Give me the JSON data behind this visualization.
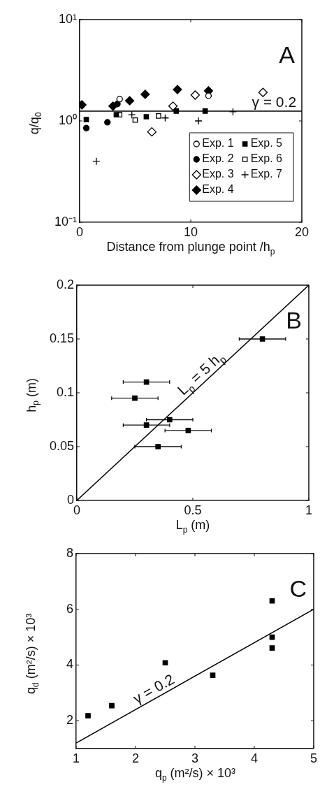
{
  "chart_data": [
    {
      "type": "scatter",
      "xlabel": "Distance from plunge point /h$_{p}$",
      "ylabel": "q/q$_{0}$",
      "log": "y",
      "xlim": [
        0,
        20
      ],
      "xticks": [
        0,
        10,
        20
      ],
      "ylim": [
        0.1,
        10
      ],
      "yticks": [
        {
          "value": 0.1,
          "label": "10⁻¹"
        },
        {
          "value": 1,
          "label": "10⁰"
        },
        {
          "value": 10,
          "label": "10¹"
        }
      ],
      "legend": "bottom right",
      "annotations": [
        "A",
        {
          "text": "γ = 0.2",
          "x": 17.5,
          "y": 1.25
        }
      ],
      "ref_lines": [
        {
          "axis": "y",
          "value": 1.25,
          "color": "#000000"
        }
      ],
      "series": [
        {
          "name": "Exp. 1",
          "color": "#ffffff",
          "marker": "circle",
          "x": [
            3.6,
            11.6
          ],
          "values": [
            1.64,
            1.77
          ]
        },
        {
          "name": "Exp. 2",
          "color": "#000000",
          "marker": "circle",
          "x": [
            0.6,
            2.5,
            3.4
          ],
          "values": [
            0.85,
            0.97,
            1.47
          ]
        },
        {
          "name": "Exp. 3",
          "color": "#ffffff",
          "marker": "diamond",
          "x": [
            6.5,
            8.4,
            10.4,
            16.5
          ],
          "values": [
            0.78,
            1.4,
            1.8,
            1.91
          ]
        },
        {
          "name": "Exp. 4",
          "color": "#000000",
          "marker": "diamond",
          "x": [
            0.2,
            3.0,
            4.5,
            5.9,
            8.8,
            11.6
          ],
          "values": [
            1.44,
            1.4,
            1.58,
            1.83,
            2.04,
            1.98
          ]
        },
        {
          "name": "Exp. 5",
          "color": "#000000",
          "marker": "square",
          "x": [
            0.6,
            3.3,
            6.0,
            8.7,
            11.3
          ],
          "values": [
            1.03,
            1.15,
            1.1,
            1.25,
            1.25
          ]
        },
        {
          "name": "Exp. 6",
          "color": "#ffffff",
          "marker": "square",
          "x": [
            3.6,
            5.0,
            7.1
          ],
          "values": [
            1.15,
            1.02,
            1.12
          ]
        },
        {
          "name": "Exp. 7",
          "color": "#000000",
          "marker": "cross",
          "x": [
            1.5,
            4.7,
            7.7,
            10.7,
            13.8
          ],
          "values": [
            0.4,
            1.15,
            1.07,
            1.0,
            1.23
          ]
        }
      ]
    },
    {
      "type": "scatter",
      "xlabel": "L$_{p}$ (m)",
      "ylabel": "h$_{p}$ (m)",
      "xlim": [
        0,
        1
      ],
      "xticks": [
        0,
        0.5,
        1
      ],
      "ylim": [
        0,
        0.2
      ],
      "yticks": [
        0,
        0.05,
        0.1,
        0.15,
        0.2
      ],
      "annotations": [
        "B",
        {
          "text": "L$_{p}$ = 5 h$_{p}$",
          "x": 0.56,
          "y": 0.112
        }
      ],
      "series": [
        {
          "color": "#000000",
          "marker": "square",
          "x": [
            0.8,
            0.3,
            0.25,
            0.4,
            0.3,
            0.48,
            0.35
          ],
          "values": [
            0.15,
            0.11,
            0.095,
            0.075,
            0.07,
            0.065,
            0.05
          ],
          "xerrors": [
            0.1,
            0.1,
            0.1,
            0.1,
            0.1,
            0.1,
            0.1
          ]
        },
        {
          "type": "line",
          "color": "#000000",
          "x": [
            0,
            1
          ],
          "values": [
            0,
            0.2
          ]
        }
      ]
    },
    {
      "type": "scatter",
      "xlabel": "q$_{p}$ (m²/s) × 10³",
      "ylabel": "q$_{d}$ (m²/s) × 10³",
      "xlim": [
        1,
        5
      ],
      "xticks": [
        1,
        2,
        3,
        4,
        5
      ],
      "ylim": [
        1,
        8
      ],
      "yticks": [
        2,
        4,
        6,
        8
      ],
      "annotations": [
        "C",
        {
          "text": "γ = 0.2",
          "x": 2.38,
          "y": 2.856
        }
      ],
      "series": [
        {
          "color": "#000000",
          "marker": "square",
          "x": [
            1.2,
            1.6,
            2.5,
            3.3,
            4.3,
            4.3,
            4.3
          ],
          "values": [
            2.18,
            2.54,
            4.08,
            3.63,
            6.3,
            5.0,
            4.61
          ]
        },
        {
          "type": "line",
          "color": "#000000",
          "x": [
            1,
            5
          ],
          "values": [
            1.2,
            6
          ]
        }
      ]
    }
  ]
}
